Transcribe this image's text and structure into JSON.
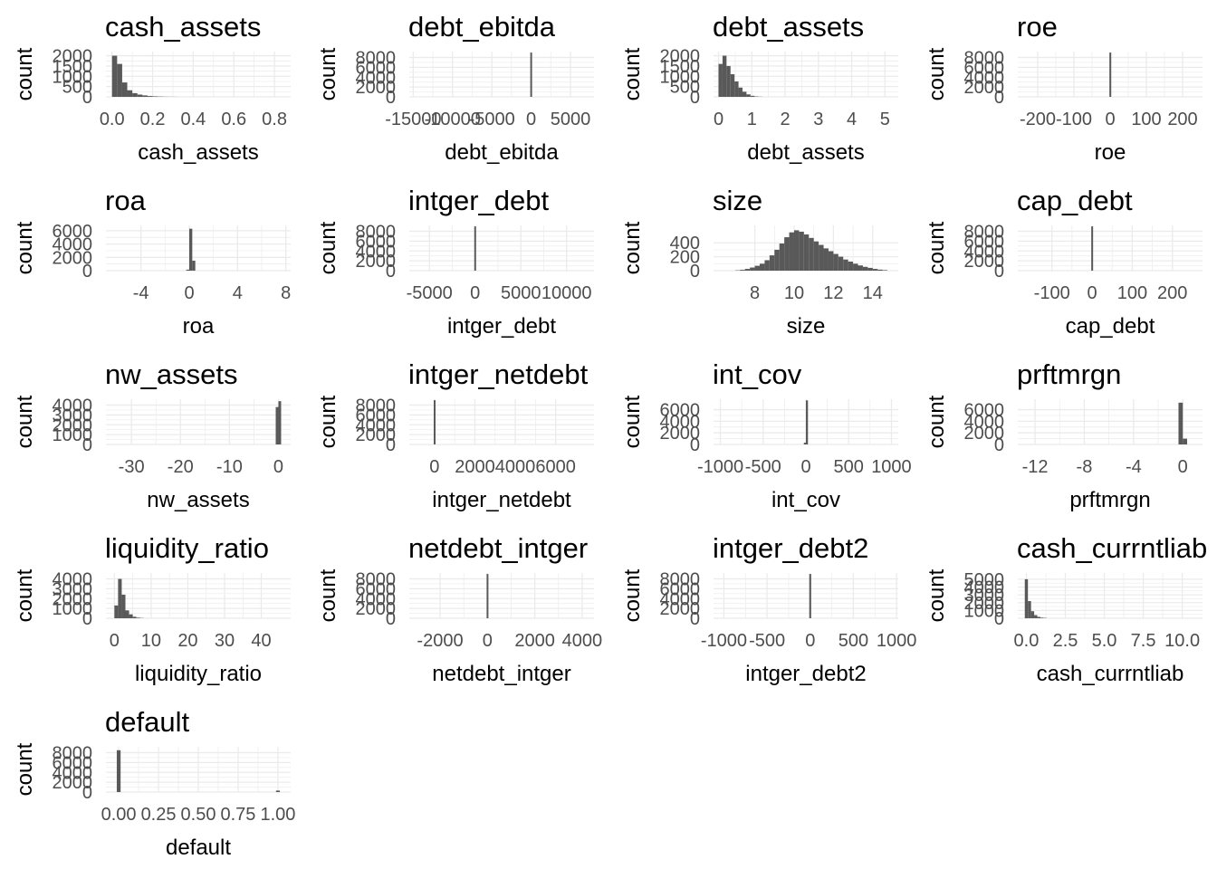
{
  "colors": {
    "bar": "#595959",
    "grid": "#ebebeb",
    "tick_text": "#4d4d4d",
    "background": "#ffffff"
  },
  "chart_data": [
    {
      "type": "bar",
      "title": "cash_assets",
      "xlabel": "cash_assets",
      "ylabel": "count",
      "xlim": [
        -0.03,
        0.88
      ],
      "ylim": [
        0,
        2200
      ],
      "x_ticks": [
        0,
        0.2,
        0.4,
        0.6,
        0.8
      ],
      "x_tick_labels": [
        "0.0",
        "0.2",
        "0.4",
        "0.6",
        "0.8"
      ],
      "y_ticks": [
        0,
        500,
        1000,
        1500,
        2000
      ],
      "y_tick_labels": [
        "0",
        "500",
        "1000",
        "1500",
        "2000"
      ],
      "bin_width": 0.025,
      "bins": [
        [
          0.0,
          2000
        ],
        [
          0.025,
          1600
        ],
        [
          0.05,
          700
        ],
        [
          0.075,
          320
        ],
        [
          0.1,
          180
        ],
        [
          0.125,
          110
        ],
        [
          0.15,
          70
        ],
        [
          0.175,
          40
        ],
        [
          0.2,
          25
        ],
        [
          0.225,
          15
        ],
        [
          0.25,
          8
        ],
        [
          0.275,
          5
        ],
        [
          0.3,
          3
        ]
      ]
    },
    {
      "type": "bar",
      "title": "debt_ebitda",
      "xlabel": "debt_ebitda",
      "ylabel": "count",
      "xlim": [
        -15500,
        8000
      ],
      "ylim": [
        0,
        9200
      ],
      "x_ticks": [
        -15000,
        -10000,
        -5000,
        0,
        5000
      ],
      "x_tick_labels": [
        "-15000",
        "-10000",
        "-5000",
        "0",
        "5000"
      ],
      "y_ticks": [
        0,
        2000,
        4000,
        6000,
        8000
      ],
      "y_tick_labels": [
        "0",
        "2000",
        "4000",
        "6000",
        "8000"
      ],
      "bin_width": 220,
      "bins": [
        [
          -110,
          9000
        ]
      ]
    },
    {
      "type": "bar",
      "title": "debt_assets",
      "xlabel": "debt_assets",
      "ylabel": "count",
      "xlim": [
        -0.15,
        5.4
      ],
      "ylim": [
        0,
        2200
      ],
      "x_ticks": [
        0,
        1,
        2,
        3,
        4,
        5
      ],
      "x_tick_labels": [
        "0",
        "1",
        "2",
        "3",
        "4",
        "5"
      ],
      "y_ticks": [
        0,
        500,
        1000,
        1500,
        2000
      ],
      "y_tick_labels": [
        "0",
        "500",
        "1000",
        "1500",
        "2000"
      ],
      "bin_width": 0.12,
      "bins": [
        [
          0.0,
          1600
        ],
        [
          0.12,
          2000
        ],
        [
          0.24,
          1500
        ],
        [
          0.36,
          1100
        ],
        [
          0.48,
          750
        ],
        [
          0.6,
          450
        ],
        [
          0.72,
          250
        ],
        [
          0.84,
          120
        ],
        [
          0.96,
          50
        ],
        [
          1.08,
          20
        ],
        [
          1.2,
          8
        ]
      ]
    },
    {
      "type": "bar",
      "title": "roe",
      "xlabel": "roe",
      "ylabel": "count",
      "xlim": [
        -255,
        255
      ],
      "ylim": [
        0,
        9200
      ],
      "x_ticks": [
        -200,
        -100,
        0,
        100,
        200
      ],
      "x_tick_labels": [
        "-200",
        "-100",
        "0",
        "100",
        "200"
      ],
      "y_ticks": [
        0,
        2000,
        4000,
        6000,
        8000
      ],
      "y_tick_labels": [
        "0",
        "2000",
        "4000",
        "6000",
        "8000"
      ],
      "bin_width": 4,
      "bins": [
        [
          -2,
          9000
        ]
      ]
    },
    {
      "type": "bar",
      "title": "roa",
      "xlabel": "roa",
      "ylabel": "count",
      "xlim": [
        -6.9,
        8.4
      ],
      "ylim": [
        0,
        6800
      ],
      "x_ticks": [
        -4,
        0,
        4,
        8
      ],
      "x_tick_labels": [
        "-4",
        "0",
        "4",
        "8"
      ],
      "y_ticks": [
        0,
        2000,
        4000,
        6000
      ],
      "y_tick_labels": [
        "0",
        "2000",
        "4000",
        "6000"
      ],
      "bin_width": 0.25,
      "bins": [
        [
          -0.25,
          150
        ],
        [
          0.0,
          6300
        ],
        [
          0.25,
          1500
        ]
      ]
    },
    {
      "type": "bar",
      "title": "intger_debt",
      "xlabel": "intger_debt",
      "ylabel": "count",
      "xlim": [
        -7200,
        13000
      ],
      "ylim": [
        0,
        9200
      ],
      "x_ticks": [
        -5000,
        0,
        5000,
        10000
      ],
      "x_tick_labels": [
        "-5000",
        "0",
        "5000",
        "10000"
      ],
      "y_ticks": [
        0,
        2000,
        4000,
        6000,
        8000
      ],
      "y_tick_labels": [
        "0",
        "2000",
        "4000",
        "6000",
        "8000"
      ],
      "bin_width": 190,
      "bins": [
        [
          -95,
          9000
        ]
      ]
    },
    {
      "type": "bar",
      "title": "size",
      "xlabel": "size",
      "ylabel": "count",
      "xlim": [
        5.9,
        15.3
      ],
      "ylim": [
        0,
        650
      ],
      "x_ticks": [
        8,
        10,
        12,
        14
      ],
      "x_tick_labels": [
        "8",
        "10",
        "12",
        "14"
      ],
      "y_ticks": [
        0,
        200,
        400
      ],
      "y_tick_labels": [
        "0",
        "200",
        "400"
      ],
      "bin_width": 0.25,
      "bins": [
        [
          7.0,
          5
        ],
        [
          7.25,
          12
        ],
        [
          7.5,
          25
        ],
        [
          7.75,
          45
        ],
        [
          8.0,
          70
        ],
        [
          8.25,
          100
        ],
        [
          8.5,
          150
        ],
        [
          8.75,
          220
        ],
        [
          9.0,
          300
        ],
        [
          9.25,
          390
        ],
        [
          9.5,
          480
        ],
        [
          9.75,
          550
        ],
        [
          10.0,
          580
        ],
        [
          10.25,
          560
        ],
        [
          10.5,
          520
        ],
        [
          10.75,
          470
        ],
        [
          11.0,
          420
        ],
        [
          11.25,
          370
        ],
        [
          11.5,
          320
        ],
        [
          11.75,
          280
        ],
        [
          12.0,
          240
        ],
        [
          12.25,
          200
        ],
        [
          12.5,
          160
        ],
        [
          12.75,
          130
        ],
        [
          13.0,
          100
        ],
        [
          13.25,
          75
        ],
        [
          13.5,
          55
        ],
        [
          13.75,
          40
        ],
        [
          14.0,
          25
        ],
        [
          14.25,
          15
        ],
        [
          14.5,
          8
        ]
      ]
    },
    {
      "type": "bar",
      "title": "cap_debt",
      "xlabel": "cap_debt",
      "ylabel": "count",
      "xlim": [
        -185,
        275
      ],
      "ylim": [
        0,
        9200
      ],
      "x_ticks": [
        -100,
        0,
        100,
        200
      ],
      "x_tick_labels": [
        "-100",
        "0",
        "100",
        "200"
      ],
      "y_ticks": [
        0,
        2000,
        4000,
        6000,
        8000
      ],
      "y_tick_labels": [
        "0",
        "2000",
        "4000",
        "6000",
        "8000"
      ],
      "bin_width": 4,
      "bins": [
        [
          -2,
          9000
        ]
      ]
    },
    {
      "type": "bar",
      "title": "nw_assets",
      "xlabel": "nw_assets",
      "ylabel": "count",
      "xlim": [
        -35.2,
        2.5
      ],
      "ylim": [
        0,
        4600
      ],
      "x_ticks": [
        -30,
        -20,
        -10,
        0
      ],
      "x_tick_labels": [
        "-30",
        "-20",
        "-10",
        "0"
      ],
      "y_ticks": [
        0,
        1000,
        2000,
        3000,
        4000
      ],
      "y_tick_labels": [
        "0",
        "1000",
        "2000",
        "3000",
        "4000"
      ],
      "bin_width": 0.55,
      "bins": [
        [
          -0.55,
          3800
        ],
        [
          0.0,
          4400
        ]
      ]
    },
    {
      "type": "bar",
      "title": "intger_netdebt",
      "xlabel": "intger_netdebt",
      "ylabel": "count",
      "xlim": [
        -1250,
        7900
      ],
      "ylim": [
        0,
        9200
      ],
      "x_ticks": [
        0,
        2000,
        4000,
        6000
      ],
      "x_tick_labels": [
        "0",
        "2000",
        "4000",
        "6000"
      ],
      "y_ticks": [
        0,
        2000,
        4000,
        6000,
        8000
      ],
      "y_tick_labels": [
        "0",
        "2000",
        "4000",
        "6000",
        "8000"
      ],
      "bin_width": 80,
      "bins": [
        [
          -40,
          9000
        ]
      ]
    },
    {
      "type": "bar",
      "title": "int_cov",
      "xlabel": "int_cov",
      "ylabel": "count",
      "xlim": [
        -1080,
        1080
      ],
      "ylim": [
        0,
        7800
      ],
      "x_ticks": [
        -1000,
        -500,
        0,
        500,
        1000
      ],
      "x_tick_labels": [
        "-1000",
        "-500",
        "0",
        "500",
        "1000"
      ],
      "y_ticks": [
        0,
        2000,
        4000,
        6000
      ],
      "y_tick_labels": [
        "0",
        "2000",
        "4000",
        "6000"
      ],
      "bin_width": 24,
      "bins": [
        [
          -24,
          300
        ],
        [
          0,
          7600
        ]
      ]
    },
    {
      "type": "bar",
      "title": "prftmrgn",
      "xlabel": "prftmrgn",
      "ylabel": "count",
      "xlim": [
        -13.4,
        1.6
      ],
      "ylim": [
        0,
        7800
      ],
      "x_ticks": [
        -12,
        -8,
        -4,
        0
      ],
      "x_tick_labels": [
        "-12",
        "-8",
        "-4",
        "0"
      ],
      "y_ticks": [
        0,
        2000,
        4000,
        6000
      ],
      "y_tick_labels": [
        "0",
        "2000",
        "4000",
        "6000"
      ],
      "bin_width": 0.35,
      "bins": [
        [
          -0.35,
          7200
        ],
        [
          0.0,
          1000
        ]
      ]
    },
    {
      "type": "bar",
      "title": "liquidity_ratio",
      "xlabel": "liquidity_ratio",
      "ylabel": "count",
      "xlim": [
        -2.3,
        48.0
      ],
      "ylim": [
        0,
        4600
      ],
      "x_ticks": [
        0,
        10,
        20,
        30,
        40
      ],
      "x_tick_labels": [
        "0",
        "10",
        "20",
        "30",
        "40"
      ],
      "y_ticks": [
        0,
        1000,
        2000,
        3000,
        4000
      ],
      "y_tick_labels": [
        "0",
        "1000",
        "2000",
        "3000",
        "4000"
      ],
      "bin_width": 1.0,
      "bins": [
        [
          0.0,
          1300
        ],
        [
          1.0,
          4000
        ],
        [
          2.0,
          2400
        ],
        [
          3.0,
          800
        ],
        [
          4.0,
          400
        ],
        [
          5.0,
          150
        ],
        [
          6.0,
          60
        ],
        [
          7.0,
          25
        ]
      ]
    },
    {
      "type": "bar",
      "title": "netdebt_intger",
      "xlabel": "netdebt_intger",
      "ylabel": "count",
      "xlim": [
        -3300,
        4500
      ],
      "ylim": [
        0,
        9200
      ],
      "x_ticks": [
        -2000,
        0,
        2000,
        4000
      ],
      "x_tick_labels": [
        "-2000",
        "0",
        "2000",
        "4000"
      ],
      "y_ticks": [
        0,
        2000,
        4000,
        6000,
        8000
      ],
      "y_tick_labels": [
        "0",
        "2000",
        "4000",
        "6000",
        "8000"
      ],
      "bin_width": 70,
      "bins": [
        [
          -35,
          9000
        ]
      ]
    },
    {
      "type": "bar",
      "title": "intger_debt2",
      "xlabel": "intger_debt2",
      "ylabel": "count",
      "xlim": [
        -1120,
        1020
      ],
      "ylim": [
        0,
        9200
      ],
      "x_ticks": [
        -1000,
        -500,
        0,
        500,
        1000
      ],
      "x_tick_labels": [
        "-1000",
        "-500",
        "0",
        "500",
        "1000"
      ],
      "y_ticks": [
        0,
        2000,
        4000,
        6000,
        8000
      ],
      "y_tick_labels": [
        "0",
        "2000",
        "4000",
        "6000",
        "8000"
      ],
      "bin_width": 22,
      "bins": [
        [
          -11,
          9000
        ]
      ]
    },
    {
      "type": "bar",
      "title": "cash_currntliab",
      "xlabel": "cash_currntliab",
      "ylabel": "count",
      "xlim": [
        -0.55,
        11.3
      ],
      "ylim": [
        0,
        5800
      ],
      "x_ticks": [
        0,
        2.5,
        5,
        7.5,
        10
      ],
      "x_tick_labels": [
        "0.0",
        "2.5",
        "5.0",
        "7.5",
        "10.0"
      ],
      "y_ticks": [
        0,
        1000,
        2000,
        3000,
        4000,
        5000
      ],
      "y_tick_labels": [
        "0",
        "1000",
        "2000",
        "3000",
        "4000",
        "5000"
      ],
      "bin_width": 0.2,
      "bins": [
        [
          -0.1,
          5000
        ],
        [
          0.1,
          2200
        ],
        [
          0.3,
          900
        ],
        [
          0.5,
          400
        ],
        [
          0.7,
          180
        ],
        [
          0.9,
          80
        ],
        [
          1.1,
          40
        ]
      ]
    },
    {
      "type": "bar",
      "title": "default",
      "xlabel": "default",
      "ylabel": "count",
      "xlim": [
        -0.08,
        1.08
      ],
      "ylim": [
        0,
        9200
      ],
      "x_ticks": [
        0,
        0.25,
        0.5,
        0.75,
        1.0
      ],
      "x_tick_labels": [
        "0.00",
        "0.25",
        "0.50",
        "0.75",
        "1.00"
      ],
      "y_ticks": [
        0,
        2000,
        4000,
        6000,
        8000
      ],
      "y_tick_labels": [
        "0",
        "2000",
        "4000",
        "6000",
        "8000"
      ],
      "bin_width": 0.024,
      "bins": [
        [
          -0.012,
          8500
        ],
        [
          0.988,
          300
        ]
      ]
    }
  ]
}
